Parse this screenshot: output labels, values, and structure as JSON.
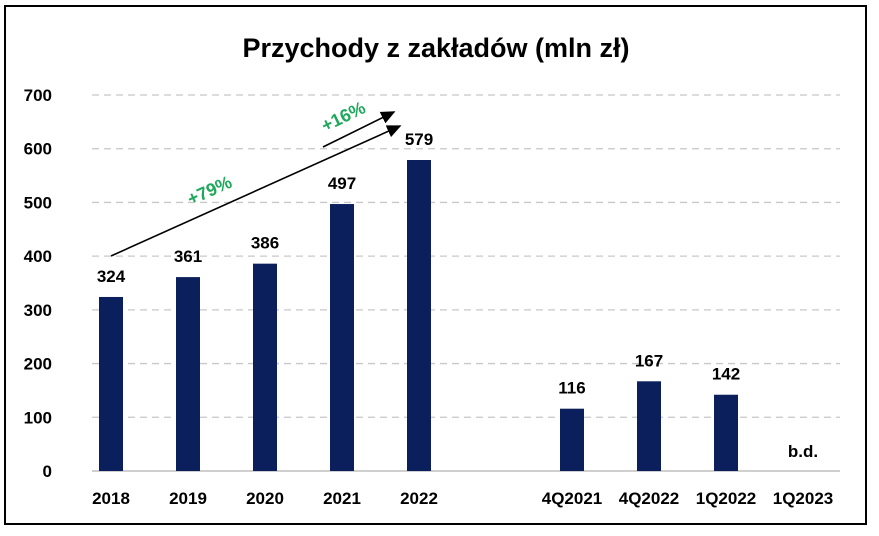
{
  "chart_data": {
    "type": "bar",
    "title": "Przychody z zakładów (mln zł)",
    "xlabel": "",
    "ylabel": "",
    "ylim": [
      0,
      700
    ],
    "yticks": [
      0,
      100,
      200,
      300,
      400,
      500,
      600,
      700
    ],
    "grid": true,
    "categories": [
      "2018",
      "2019",
      "2020",
      "2021",
      "2022",
      "4Q2021",
      "4Q2022",
      "1Q2022",
      "1Q2023"
    ],
    "values": [
      324,
      361,
      386,
      497,
      579,
      116,
      167,
      142,
      null
    ],
    "data_labels": [
      "324",
      "361",
      "386",
      "497",
      "579",
      "116",
      "167",
      "142",
      "b.d."
    ],
    "annotations": [
      {
        "text": "+79%",
        "from": "2018",
        "to": "2022"
      },
      {
        "text": "+16%",
        "from": "2021",
        "to": "2022"
      }
    ],
    "colors": {
      "bar": "#0b1f5c",
      "annotation": "#1ea85a",
      "grid": "#c8c8c8"
    }
  }
}
